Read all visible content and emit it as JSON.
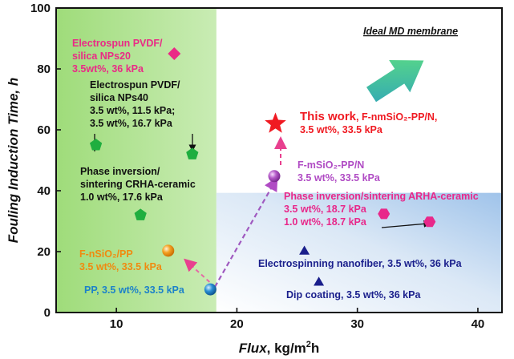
{
  "chart_data": {
    "type": "scatter",
    "xlabel": "Flux, kg/m²h",
    "ylabel": "Fouling Induction Time, h",
    "xlim": [
      5,
      42
    ],
    "ylim": [
      0,
      100
    ],
    "xticks": [
      10,
      20,
      30,
      40
    ],
    "yticks": [
      0,
      20,
      40,
      60,
      80,
      100
    ],
    "grid": false,
    "legend": "none",
    "ideal_label": "Ideal MD membrane",
    "shaded_regions": [
      {
        "x": [
          5,
          18.3
        ],
        "y": [
          0,
          100
        ],
        "color": "#8fd36a"
      },
      {
        "x": [
          18.3,
          42
        ],
        "y": [
          0,
          39.3
        ],
        "color": "#a9c9ee"
      }
    ],
    "points": [
      {
        "x": 14.8,
        "y": 85,
        "marker": "diamond",
        "color": "#ea2a86"
      },
      {
        "x": 8.3,
        "y": 55,
        "marker": "pentagon",
        "color": "#1fae3f"
      },
      {
        "x": 16.3,
        "y": 52,
        "marker": "pentagon",
        "color": "#1fae3f"
      },
      {
        "x": 12,
        "y": 32,
        "marker": "pentagon",
        "color": "#1fae3f"
      },
      {
        "x": 14.3,
        "y": 20.3,
        "marker": "sphere",
        "color": "#f08a10"
      },
      {
        "x": 17.8,
        "y": 7.6,
        "marker": "sphere",
        "color": "#1d82c9"
      },
      {
        "x": 23.1,
        "y": 44.8,
        "marker": "sphere",
        "color": "#b04bc4"
      },
      {
        "x": 23.2,
        "y": 62,
        "marker": "star",
        "color": "#f01a22"
      },
      {
        "x": 32.2,
        "y": 32.4,
        "marker": "hexagon",
        "color": "#e8288a"
      },
      {
        "x": 36,
        "y": 29.8,
        "marker": "hexagon",
        "color": "#e8288a"
      },
      {
        "x": 25.6,
        "y": 20,
        "marker": "triangle",
        "color": "#1a1f8c"
      },
      {
        "x": 26.8,
        "y": 9.8,
        "marker": "triangle",
        "color": "#1a1f8c"
      }
    ],
    "annotations": [
      {
        "lines": [
          "Electrospun PVDF/",
          "silica NPs20",
          "3.5wt%, 36 kPa"
        ],
        "color": "#ea2a86"
      },
      {
        "lines": [
          "Electrospun PVDF/",
          "silica NPs40",
          "3.5 wt%, 11.5 kPa;",
          "3.5 wt%, 16.7 kPa"
        ],
        "color": "#111111"
      },
      {
        "lines": [
          "Phase inversion/",
          "sintering CRHA-ceramic",
          "1.0 wt%, 17.6 kPa"
        ],
        "color": "#111111"
      },
      {
        "lines": [
          "F-nSiO₂/PP",
          "3.5 wt%, 33.5 kPa"
        ],
        "color": "#f08a10"
      },
      {
        "lines": [
          "PP, 3.5 wt%, 33.5 kPa"
        ],
        "color": "#1d82c9"
      },
      {
        "lines": [
          "F-mSiO₂-PP/N",
          "3.5 wt%, 33.5 kPa"
        ],
        "color": "#b04bc4"
      },
      {
        "lines": [
          "This work, F-nmSiO₂-PP/N,",
          "3.5 wt%, 33.5 kPa"
        ],
        "color": "#f01a22"
      },
      {
        "lines": [
          "Phase inversion/sintering ARHA-ceramic",
          "3.5 wt%, 18.7 kPa",
          "1.0 wt%, 18.7 kPa"
        ],
        "color": "#e8288a"
      },
      {
        "lines": [
          "Electrospinning nanofiber, 3.5 wt%, 36 kPa"
        ],
        "color": "#1a1f8c"
      },
      {
        "lines": [
          "Dip coating, 3.5 wt%, 36 kPa"
        ],
        "color": "#1a1f8c"
      }
    ]
  }
}
